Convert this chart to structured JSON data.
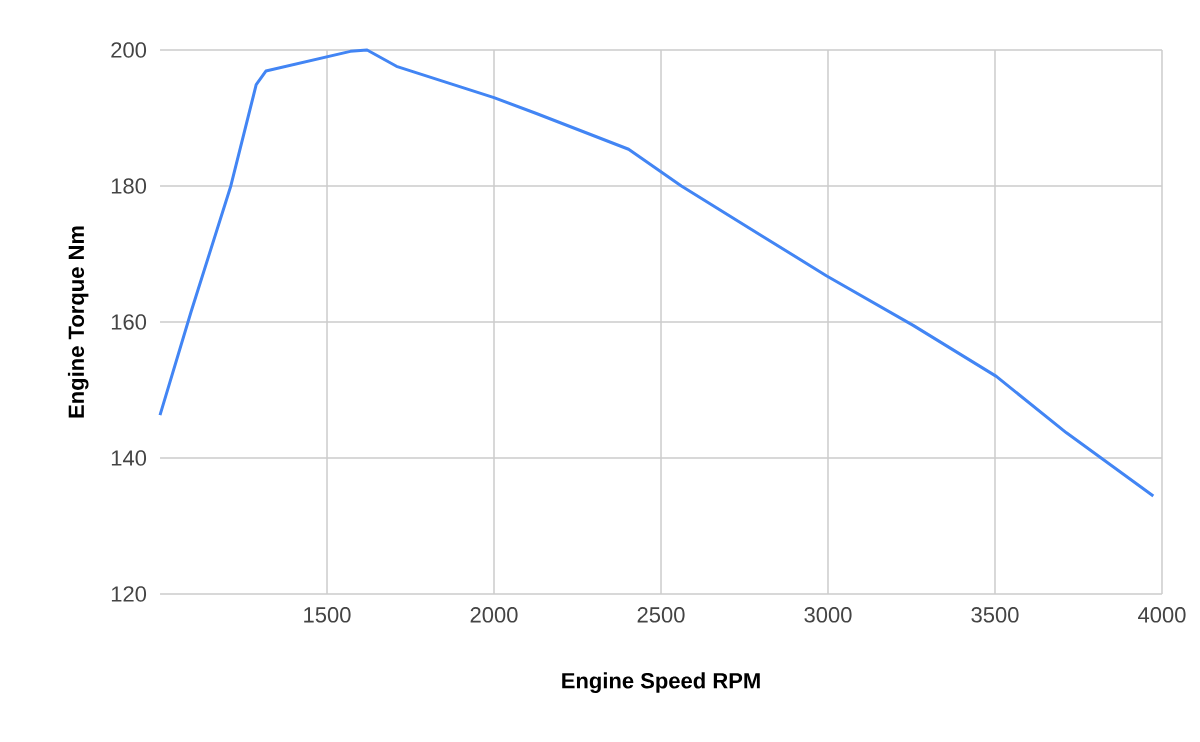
{
  "chart_data": {
    "type": "line",
    "xlabel": "Engine Speed RPM",
    "ylabel": "Engine Torque Nm",
    "x": [
      1000,
      1093,
      1212,
      1288,
      1317,
      1570,
      1620,
      1708,
      2000,
      2125,
      2403,
      2561,
      2995,
      3255,
      3504,
      3714,
      3974
    ],
    "series": [
      {
        "color": "#4285f4",
        "values": [
          146.3,
          161.5,
          180,
          194.9,
          196.9,
          199.8,
          200,
          197.6,
          193,
          190.7,
          185.4,
          180,
          166.8,
          159.5,
          152,
          143.7,
          134.4
        ]
      }
    ],
    "xlim": [
      1000,
      4000
    ],
    "xticks": [
      1500,
      2000,
      2500,
      3000,
      3500,
      4000
    ],
    "ylim": [
      120,
      200
    ],
    "yticks": [
      120,
      140,
      160,
      180,
      200
    ],
    "grid": true
  }
}
